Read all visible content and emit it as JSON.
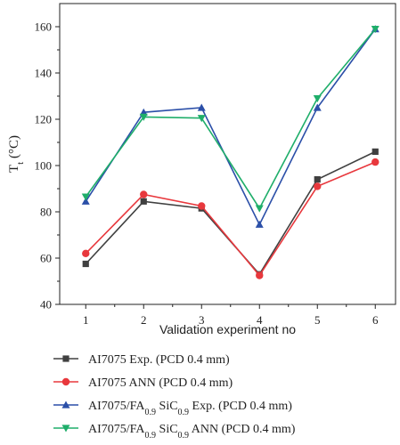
{
  "chart_data": {
    "type": "line",
    "xlabel": "Validation experiment no",
    "ylabel_main": "T",
    "ylabel_sub": "t",
    "ylabel_unit": " (°C)",
    "x": [
      1,
      2,
      3,
      4,
      5,
      6
    ],
    "xticks": [
      "1",
      "2",
      "3",
      "4",
      "5",
      "6"
    ],
    "xlim": [
      0.55,
      6.35
    ],
    "ylim": [
      40,
      170
    ],
    "yticks": [
      "40",
      "60",
      "80",
      "100",
      "120",
      "140",
      "160"
    ],
    "yticks_minor": [
      50,
      70,
      90,
      110,
      130,
      150
    ],
    "legend_position": "bottom",
    "series": [
      {
        "legend": {
          "pre": "AI7075 Exp. (PCD 0.4 mm)"
        },
        "color": "#404040",
        "marker": "square",
        "values": [
          57.5,
          84.5,
          81.5,
          53,
          94,
          106
        ]
      },
      {
        "legend": {
          "pre": "AI7075 ANN (PCD 0.4 mm)"
        },
        "color": "#e8383d",
        "marker": "circle",
        "values": [
          62,
          87.5,
          82.5,
          52.5,
          91,
          101.5
        ]
      },
      {
        "legend": {
          "pre": "AI7075/FA",
          "s1": "0.9",
          "mid": " SiC",
          "s2": "0.9",
          "post": " Exp. (PCD 0.4 mm)"
        },
        "color": "#2b4fa8",
        "marker": "triangle-up",
        "values": [
          84.5,
          123,
          125,
          74.5,
          125,
          159
        ]
      },
      {
        "legend": {
          "pre": "AI7075/FA",
          "s1": "0.9",
          "mid": " SiC",
          "s2": "0.9",
          "post": " ANN (PCD 0.4 mm)"
        },
        "color": "#1fae6a",
        "marker": "triangle-down",
        "values": [
          86.5,
          121,
          120.5,
          81.5,
          129,
          159
        ]
      }
    ]
  }
}
